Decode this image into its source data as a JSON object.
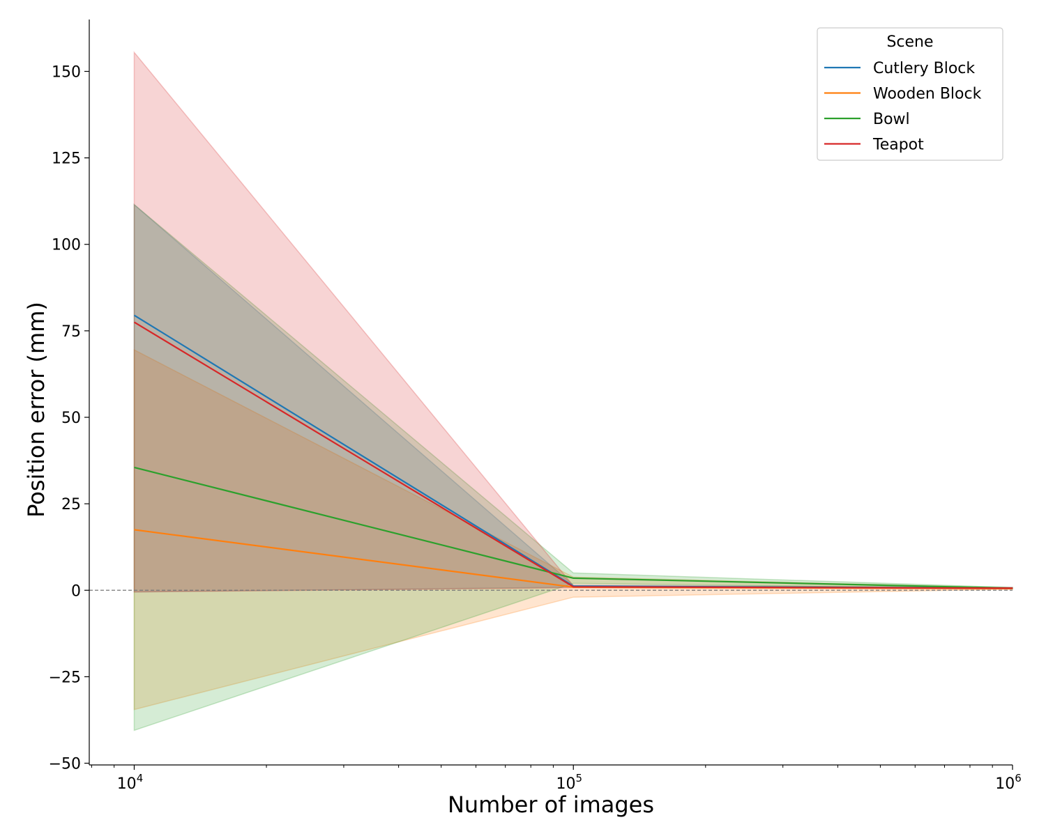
{
  "chart_data": {
    "type": "line",
    "title": "",
    "xlabel": "Number of images",
    "ylabel": "Position error (mm)",
    "xscale": "log",
    "x": [
      10000,
      100000,
      1000000
    ],
    "xlim": [
      7900,
      1000000
    ],
    "ylim": [
      -50.5,
      165
    ],
    "xticks": [
      {
        "value": 10000,
        "base": "10",
        "exp": "4"
      },
      {
        "value": 100000,
        "base": "10",
        "exp": "5"
      },
      {
        "value": 1000000,
        "base": "10",
        "exp": "6"
      }
    ],
    "yticks": [
      {
        "value": -50,
        "label": "−50"
      },
      {
        "value": -25,
        "label": "−25"
      },
      {
        "value": 0,
        "label": "0"
      },
      {
        "value": 25,
        "label": "25"
      },
      {
        "value": 50,
        "label": "50"
      },
      {
        "value": 75,
        "label": "75"
      },
      {
        "value": 100,
        "label": "100"
      },
      {
        "value": 125,
        "label": "125"
      },
      {
        "value": 150,
        "label": "150"
      }
    ],
    "reference_line": {
      "y": 0,
      "style": "dashed",
      "color": "#777777"
    },
    "grid": false,
    "legend": {
      "title": "Scene",
      "position": "top-right"
    },
    "series": [
      {
        "name": "Cutlery Block",
        "color": "#1f77b4",
        "values": [
          79.5,
          1.2,
          0.6
        ],
        "lower": [
          -0.5,
          0.9,
          0.4
        ],
        "upper": [
          111.5,
          1.5,
          0.8
        ]
      },
      {
        "name": "Wooden Block",
        "color": "#ff7f0e",
        "values": [
          17.5,
          0.9,
          0.5
        ],
        "lower": [
          -34.5,
          -2.0,
          0.3
        ],
        "upper": [
          69.5,
          3.8,
          0.7
        ]
      },
      {
        "name": "Bowl",
        "color": "#2ca02c",
        "values": [
          35.5,
          3.5,
          0.6
        ],
        "lower": [
          -40.5,
          2.0,
          0.4
        ],
        "upper": [
          111.5,
          5.0,
          0.8
        ]
      },
      {
        "name": "Teapot",
        "color": "#d62728",
        "values": [
          77.5,
          1.0,
          0.6
        ],
        "lower": [
          -0.5,
          0.7,
          0.4
        ],
        "upper": [
          155.5,
          1.3,
          0.8
        ]
      }
    ]
  }
}
